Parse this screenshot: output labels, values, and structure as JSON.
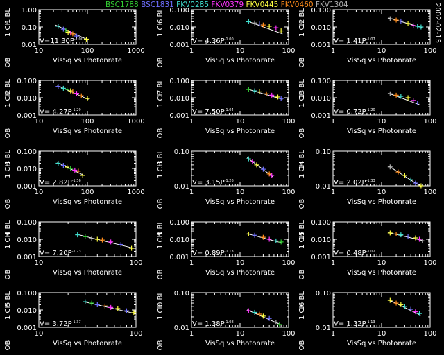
{
  "header": {
    "date": "2002-02-15",
    "stars": [
      {
        "name": "BSC1788",
        "color": "#32cd32"
      },
      {
        "name": "BSC1831",
        "color": "#6f6fff"
      },
      {
        "name": "FKV0285",
        "color": "#40e0d0"
      },
      {
        "name": "FKV0379",
        "color": "#ff33ff"
      },
      {
        "name": "FKV0445",
        "color": "#ffff40"
      },
      {
        "name": "FKV0460",
        "color": "#ff8c1a"
      },
      {
        "name": "FKV1304",
        "color": "#b0b0b0"
      }
    ]
  },
  "chart_data": [
    {
      "type": "scatter",
      "title": "",
      "xlabel": "VisSq vs Photonrate",
      "ylabel_top": "1 BL",
      "ylabel_mid": "1 CH",
      "ylabel_bot": "OB",
      "fit_label": "V=11.30P",
      "fit_exp": "-1.00",
      "xlim": [
        10,
        1000
      ],
      "x_ticks": [
        10,
        100,
        1000
      ],
      "ylim": [
        0.01,
        1.0
      ],
      "y_ticks": [
        0.01,
        0.1,
        1.0
      ],
      "y_tick_labels": [
        "0.01",
        "0.10",
        "1.00"
      ],
      "points": [
        {
          "x": 25,
          "y": 0.11,
          "s": 2
        },
        {
          "x": 32,
          "y": 0.075,
          "s": 1
        },
        {
          "x": 36,
          "y": 0.06,
          "s": 0
        },
        {
          "x": 40,
          "y": 0.05,
          "s": 4
        },
        {
          "x": 45,
          "y": 0.045,
          "s": 3
        },
        {
          "x": 50,
          "y": 0.04,
          "s": 5
        },
        {
          "x": 60,
          "y": 0.03,
          "s": 1
        },
        {
          "x": 95,
          "y": 0.02,
          "s": 4
        }
      ],
      "fit": [
        [
          22,
          0.13
        ],
        [
          95,
          0.02
        ]
      ]
    },
    {
      "type": "scatter",
      "xlabel": "VisSq vs Photonrate",
      "ylabel_top": "6 BL",
      "ylabel_mid": "1 CH",
      "ylabel_bot": "OB",
      "fit_label": "V= 4.36P",
      "fit_exp": "-1.00",
      "xlim": [
        1,
        100
      ],
      "x_ticks": [
        1,
        10,
        100
      ],
      "ylim": [
        0.001,
        0.1
      ],
      "y_ticks": [
        0.001,
        0.01,
        0.1
      ],
      "y_tick_labels": [
        "0.001",
        "0.010",
        "0.100"
      ],
      "points": [
        {
          "x": 15,
          "y": 0.02,
          "s": 2
        },
        {
          "x": 20,
          "y": 0.017,
          "s": 6
        },
        {
          "x": 25,
          "y": 0.015,
          "s": 1
        },
        {
          "x": 30,
          "y": 0.013,
          "s": 5
        },
        {
          "x": 40,
          "y": 0.011,
          "s": 4
        },
        {
          "x": 55,
          "y": 0.009,
          "s": 3
        },
        {
          "x": 70,
          "y": 0.006,
          "s": 4
        }
      ],
      "fit": [
        [
          14,
          0.022
        ],
        [
          75,
          0.004
        ]
      ]
    },
    {
      "type": "scatter",
      "xlabel": "VisSq vs Photonrate",
      "ylabel_top": "12 BL",
      "ylabel_mid": "1 CH",
      "ylabel_bot": "OB",
      "fit_label": "V= 1.41P",
      "fit_exp": "-1.07",
      "xlim": [
        1,
        100
      ],
      "x_ticks": [
        1,
        10,
        100
      ],
      "ylim": [
        0.001,
        0.1
      ],
      "y_ticks": [
        0.001,
        0.01,
        0.1
      ],
      "y_tick_labels": [
        "0.001",
        "0.010",
        "0.100"
      ],
      "points": [
        {
          "x": 15,
          "y": 0.03,
          "s": 6
        },
        {
          "x": 20,
          "y": 0.025,
          "s": 5
        },
        {
          "x": 25,
          "y": 0.022,
          "s": 1
        },
        {
          "x": 35,
          "y": 0.016,
          "s": 4
        },
        {
          "x": 45,
          "y": 0.012,
          "s": 3
        },
        {
          "x": 55,
          "y": 0.011,
          "s": 2
        },
        {
          "x": 65,
          "y": 0.01,
          "s": 2
        }
      ],
      "fit": [
        [
          14,
          0.033
        ],
        [
          70,
          0.009
        ]
      ]
    },
    {
      "type": "scatter",
      "xlabel": "VisSq vs Photonrate",
      "ylabel_top": "2 BL",
      "ylabel_mid": "1 CH",
      "ylabel_bot": "OB",
      "fit_label": "V= 4.27P",
      "fit_exp": "-1.29",
      "xlim": [
        10,
        1000
      ],
      "x_ticks": [
        10,
        100,
        1000
      ],
      "ylim": [
        0.001,
        0.1
      ],
      "y_ticks": [
        0.001,
        0.01,
        0.1
      ],
      "y_tick_labels": [
        "0.001",
        "0.010",
        "0.100"
      ],
      "points": [
        {
          "x": 25,
          "y": 0.045,
          "s": 1
        },
        {
          "x": 32,
          "y": 0.035,
          "s": 2
        },
        {
          "x": 38,
          "y": 0.03,
          "s": 0
        },
        {
          "x": 45,
          "y": 0.025,
          "s": 4
        },
        {
          "x": 50,
          "y": 0.022,
          "s": 5
        },
        {
          "x": 60,
          "y": 0.018,
          "s": 3
        },
        {
          "x": 75,
          "y": 0.013,
          "s": 5
        },
        {
          "x": 100,
          "y": 0.009,
          "s": 4
        }
      ],
      "fit": [
        [
          24,
          0.05
        ],
        [
          105,
          0.008
        ]
      ]
    },
    {
      "type": "scatter",
      "xlabel": "VisSq vs Photonrate",
      "ylabel_top": "7 BL",
      "ylabel_mid": "1 CH",
      "ylabel_bot": "OB",
      "fit_label": "V= 7.50P",
      "fit_exp": "-1.04",
      "xlim": [
        1,
        100
      ],
      "x_ticks": [
        1,
        10,
        100
      ],
      "ylim": [
        0.001,
        0.1
      ],
      "y_ticks": [
        0.001,
        0.01,
        0.1
      ],
      "y_tick_labels": [
        "0.001",
        "0.010",
        "0.100"
      ],
      "points": [
        {
          "x": 15,
          "y": 0.03,
          "s": 0
        },
        {
          "x": 20,
          "y": 0.025,
          "s": 2
        },
        {
          "x": 25,
          "y": 0.022,
          "s": 4
        },
        {
          "x": 35,
          "y": 0.017,
          "s": 5
        },
        {
          "x": 45,
          "y": 0.014,
          "s": 3
        },
        {
          "x": 60,
          "y": 0.011,
          "s": 4
        },
        {
          "x": 70,
          "y": 0.009,
          "s": 1
        }
      ],
      "fit": [
        [
          14,
          0.032
        ],
        [
          75,
          0.008
        ]
      ]
    },
    {
      "type": "scatter",
      "xlabel": "VisSq vs Photonrate",
      "ylabel_top": "13 BL",
      "ylabel_mid": "1 CH",
      "ylabel_bot": "OB",
      "fit_label": "V= 0.72P",
      "fit_exp": "-1.20",
      "xlim": [
        1,
        100
      ],
      "x_ticks": [
        1,
        10,
        100
      ],
      "ylim": [
        0.001,
        0.1
      ],
      "y_ticks": [
        0.001,
        0.01,
        0.1
      ],
      "y_tick_labels": [
        "0.001",
        "0.010",
        "0.100"
      ],
      "points": [
        {
          "x": 15,
          "y": 0.017,
          "s": 6
        },
        {
          "x": 20,
          "y": 0.014,
          "s": 5
        },
        {
          "x": 25,
          "y": 0.012,
          "s": 2
        },
        {
          "x": 35,
          "y": 0.01,
          "s": 4
        },
        {
          "x": 45,
          "y": 0.007,
          "s": 3
        },
        {
          "x": 55,
          "y": 0.005,
          "s": 1
        }
      ],
      "fit": [
        [
          14,
          0.018
        ],
        [
          60,
          0.004
        ]
      ]
    },
    {
      "type": "scatter",
      "xlabel": "VisSq vs Photonrate",
      "ylabel_top": "3 BL",
      "ylabel_mid": "1 CH",
      "ylabel_bot": "OB",
      "fit_label": "V= 2.82P",
      "fit_exp": "-1.36",
      "xlim": [
        10,
        1000
      ],
      "x_ticks": [
        10,
        100,
        1000
      ],
      "ylim": [
        0.001,
        0.1
      ],
      "y_ticks": [
        0.001,
        0.01,
        0.1
      ],
      "y_tick_labels": [
        "0.001",
        "0.010",
        "0.100"
      ],
      "points": [
        {
          "x": 25,
          "y": 0.02,
          "s": 2
        },
        {
          "x": 32,
          "y": 0.015,
          "s": 1
        },
        {
          "x": 38,
          "y": 0.012,
          "s": 4
        },
        {
          "x": 45,
          "y": 0.01,
          "s": 0
        },
        {
          "x": 55,
          "y": 0.008,
          "s": 3
        },
        {
          "x": 65,
          "y": 0.007,
          "s": 5
        },
        {
          "x": 80,
          "y": 0.004,
          "s": 4
        }
      ],
      "fit": [
        [
          24,
          0.022
        ],
        [
          85,
          0.004
        ]
      ]
    },
    {
      "type": "scatter",
      "xlabel": "VisSq vs Photonrate",
      "ylabel_top": "8 BL",
      "ylabel_mid": "1 CH",
      "ylabel_bot": "OB",
      "fit_label": "V= 3.15P",
      "fit_exp": "-1.26",
      "xlim": [
        1,
        100
      ],
      "x_ticks": [
        1,
        10,
        100
      ],
      "ylim": [
        0.01,
        0.1
      ],
      "y_ticks": [
        0.01,
        0.1
      ],
      "y_tick_labels": [
        "0.01",
        "0.10"
      ],
      "points": [
        {
          "x": 15,
          "y": 0.06,
          "s": 2
        },
        {
          "x": 18,
          "y": 0.05,
          "s": 3
        },
        {
          "x": 22,
          "y": 0.04,
          "s": 4
        },
        {
          "x": 30,
          "y": 0.03,
          "s": 1
        },
        {
          "x": 40,
          "y": 0.022,
          "s": 5
        },
        {
          "x": 45,
          "y": 0.02,
          "s": 3
        }
      ],
      "fit": [
        [
          14,
          0.065
        ],
        [
          48,
          0.018
        ]
      ]
    },
    {
      "type": "scatter",
      "xlabel": "VisSq vs Photonrate",
      "ylabel_top": "14 BL",
      "ylabel_mid": "1 CH",
      "ylabel_bot": "OB",
      "fit_label": "V= 2.02P",
      "fit_exp": "-1.33",
      "xlim": [
        1,
        100
      ],
      "x_ticks": [
        1,
        10,
        100
      ],
      "ylim": [
        0.01,
        0.1
      ],
      "y_ticks": [
        0.01,
        0.1
      ],
      "y_tick_labels": [
        "0.01",
        "0.10"
      ],
      "points": [
        {
          "x": 15,
          "y": 0.035,
          "s": 6
        },
        {
          "x": 22,
          "y": 0.025,
          "s": 5
        },
        {
          "x": 30,
          "y": 0.02,
          "s": 4
        },
        {
          "x": 40,
          "y": 0.015,
          "s": 2
        },
        {
          "x": 50,
          "y": 0.012,
          "s": 1
        },
        {
          "x": 65,
          "y": 0.01,
          "s": 4
        }
      ],
      "fit": [
        [
          14,
          0.037
        ],
        [
          70,
          0.009
        ]
      ]
    },
    {
      "type": "scatter",
      "xlabel": "VisSq vs Photonrate",
      "ylabel_top": "4 BL",
      "ylabel_mid": "1 CH",
      "ylabel_bot": "OB",
      "fit_label": "V= 7.20P",
      "fit_exp": "-1.23",
      "xlim": [
        10,
        100
      ],
      "x_ticks": [
        10,
        100
      ],
      "ylim": [
        0.001,
        0.1
      ],
      "y_ticks": [
        0.001,
        0.01,
        0.1
      ],
      "y_tick_labels": [
        "0.001",
        "0.010",
        "0.100"
      ],
      "points": [
        {
          "x": 25,
          "y": 0.018,
          "s": 2
        },
        {
          "x": 30,
          "y": 0.014,
          "s": 0
        },
        {
          "x": 35,
          "y": 0.011,
          "s": 6
        },
        {
          "x": 40,
          "y": 0.01,
          "s": 4
        },
        {
          "x": 45,
          "y": 0.009,
          "s": 5
        },
        {
          "x": 55,
          "y": 0.007,
          "s": 3
        },
        {
          "x": 70,
          "y": 0.005,
          "s": 1
        },
        {
          "x": 90,
          "y": 0.003,
          "s": 4
        }
      ],
      "fit": [
        [
          24,
          0.02
        ],
        [
          95,
          0.003
        ]
      ]
    },
    {
      "type": "scatter",
      "xlabel": "VisSq vs Photonrate",
      "ylabel_top": "9 BL",
      "ylabel_mid": "1 CH",
      "ylabel_bot": "OB",
      "fit_label": "V= 0.89P",
      "fit_exp": "-1.13",
      "xlim": [
        1,
        100
      ],
      "x_ticks": [
        1,
        10,
        100
      ],
      "ylim": [
        0.001,
        0.1
      ],
      "y_ticks": [
        0.001,
        0.01,
        0.1
      ],
      "y_tick_labels": [
        "0.001",
        "0.010",
        "0.100"
      ],
      "points": [
        {
          "x": 15,
          "y": 0.02,
          "s": 4
        },
        {
          "x": 20,
          "y": 0.017,
          "s": 1
        },
        {
          "x": 30,
          "y": 0.013,
          "s": 5
        },
        {
          "x": 40,
          "y": 0.01,
          "s": 3
        },
        {
          "x": 55,
          "y": 0.008,
          "s": 2
        },
        {
          "x": 70,
          "y": 0.007,
          "s": 0
        }
      ],
      "fit": [
        [
          14,
          0.021
        ],
        [
          75,
          0.006
        ]
      ]
    },
    {
      "type": "scatter",
      "xlabel": "VisSq vs Photonrate",
      "ylabel_top": "15 BL",
      "ylabel_mid": "1 CH",
      "ylabel_bot": "OB",
      "fit_label": "V= 0.48P",
      "fit_exp": "-1.02",
      "xlim": [
        1,
        100
      ],
      "x_ticks": [
        1,
        10,
        100
      ],
      "ylim": [
        0.001,
        0.1
      ],
      "y_ticks": [
        0.001,
        0.01,
        0.1
      ],
      "y_tick_labels": [
        "0.001",
        "0.010",
        "0.100"
      ],
      "points": [
        {
          "x": 15,
          "y": 0.023,
          "s": 4
        },
        {
          "x": 20,
          "y": 0.02,
          "s": 5
        },
        {
          "x": 25,
          "y": 0.018,
          "s": 2
        },
        {
          "x": 35,
          "y": 0.015,
          "s": 1
        },
        {
          "x": 50,
          "y": 0.012,
          "s": 4
        },
        {
          "x": 60,
          "y": 0.01,
          "s": 3
        },
        {
          "x": 70,
          "y": 0.008,
          "s": 6
        }
      ],
      "fit": [
        [
          14,
          0.024
        ],
        [
          75,
          0.008
        ]
      ]
    },
    {
      "type": "scatter",
      "xlabel": "VisSq vs Photonrate",
      "ylabel_top": "5 BL",
      "ylabel_mid": "1 CH",
      "ylabel_bot": "OB",
      "fit_label": "V= 3.72P",
      "fit_exp": "-1.37",
      "xlim": [
        10,
        100
      ],
      "x_ticks": [
        10,
        100
      ],
      "ylim": [
        0.001,
        0.1
      ],
      "y_ticks": [
        0.001,
        0.01,
        0.1
      ],
      "y_tick_labels": [
        "0.001",
        "0.010",
        "0.100"
      ],
      "points": [
        {
          "x": 30,
          "y": 0.03,
          "s": 2
        },
        {
          "x": 35,
          "y": 0.025,
          "s": 0
        },
        {
          "x": 40,
          "y": 0.02,
          "s": 1
        },
        {
          "x": 48,
          "y": 0.017,
          "s": 5
        },
        {
          "x": 55,
          "y": 0.014,
          "s": 3
        },
        {
          "x": 65,
          "y": 0.012,
          "s": 4
        },
        {
          "x": 80,
          "y": 0.009,
          "s": 1
        },
        {
          "x": 95,
          "y": 0.007,
          "s": 4
        }
      ],
      "fit": [
        [
          29,
          0.03
        ],
        [
          100,
          0.006
        ]
      ]
    },
    {
      "type": "scatter",
      "xlabel": "VisSq vs Photonrate",
      "ylabel_top": "10 BL",
      "ylabel_mid": "1 CH",
      "ylabel_bot": "OB",
      "fit_label": "V= 1.38P",
      "fit_exp": "-1.08",
      "xlim": [
        1,
        100
      ],
      "x_ticks": [
        1,
        10,
        100
      ],
      "ylim": [
        0.01,
        0.1
      ],
      "y_ticks": [
        0.01,
        0.1
      ],
      "y_tick_labels": [
        "0.01",
        "0.10"
      ],
      "points": [
        {
          "x": 15,
          "y": 0.03,
          "s": 3
        },
        {
          "x": 20,
          "y": 0.027,
          "s": 2
        },
        {
          "x": 25,
          "y": 0.024,
          "s": 5
        },
        {
          "x": 30,
          "y": 0.021,
          "s": 4
        },
        {
          "x": 40,
          "y": 0.018,
          "s": 1
        },
        {
          "x": 55,
          "y": 0.014,
          "s": 6
        },
        {
          "x": 65,
          "y": 0.012,
          "s": 0
        }
      ],
      "fit": [
        [
          14,
          0.032
        ],
        [
          68,
          0.012
        ]
      ]
    },
    {
      "type": "scatter",
      "xlabel": "VisSq vs Photonrate",
      "ylabel_top": "16 BL",
      "ylabel_mid": "1 CH",
      "ylabel_bot": "OB",
      "fit_label": "V= 1.32P",
      "fit_exp": "-1.13",
      "xlim": [
        1,
        100
      ],
      "x_ticks": [
        1,
        10,
        100
      ],
      "ylim": [
        0.01,
        0.1
      ],
      "y_ticks": [
        0.01,
        0.1
      ],
      "y_tick_labels": [
        "0.01",
        "0.10"
      ],
      "points": [
        {
          "x": 15,
          "y": 0.06,
          "s": 4
        },
        {
          "x": 20,
          "y": 0.05,
          "s": 5
        },
        {
          "x": 25,
          "y": 0.045,
          "s": 4
        },
        {
          "x": 30,
          "y": 0.04,
          "s": 2
        },
        {
          "x": 40,
          "y": 0.033,
          "s": 1
        },
        {
          "x": 50,
          "y": 0.028,
          "s": 3
        },
        {
          "x": 60,
          "y": 0.025,
          "s": 2
        }
      ],
      "fit": [
        [
          14,
          0.062
        ],
        [
          65,
          0.022
        ]
      ]
    }
  ]
}
